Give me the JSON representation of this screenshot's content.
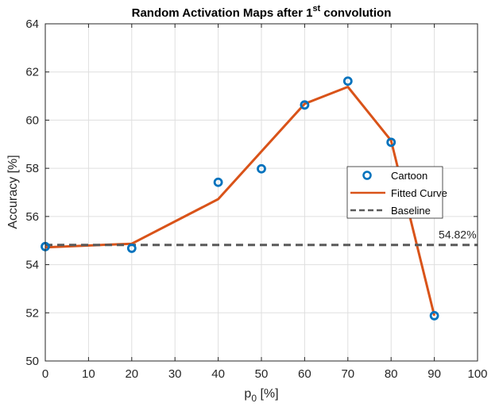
{
  "chart_data": {
    "type": "line",
    "title": "Random Activation Maps after 1",
    "title_superscript": "st",
    "title_suffix": " convolution",
    "xlabel": "p",
    "xlabel_subscript": "0",
    "xlabel_suffix": " [%]",
    "ylabel": "Accuracy [%]",
    "xlim": [
      0,
      100
    ],
    "ylim": [
      50,
      64
    ],
    "x_ticks": [
      "0",
      "10",
      "20",
      "30",
      "40",
      "50",
      "60",
      "70",
      "80",
      "90",
      "100"
    ],
    "y_ticks": [
      "50",
      "52",
      "54",
      "56",
      "58",
      "60",
      "62",
      "64"
    ],
    "grid": true,
    "legend_position": "right",
    "series": [
      {
        "name": "Cartoon",
        "kind": "scatter",
        "color": "#0072BD",
        "x": [
          0,
          20,
          40,
          50,
          60,
          70,
          80,
          90
        ],
        "y": [
          54.75,
          54.68,
          57.42,
          57.98,
          60.63,
          61.62,
          59.08,
          51.88
        ]
      },
      {
        "name": "Fitted Curve",
        "kind": "line",
        "color": "#D95319",
        "x": [
          0,
          20,
          40,
          60,
          70,
          80,
          90
        ],
        "y": [
          54.72,
          54.87,
          56.72,
          60.68,
          61.38,
          59.15,
          51.88
        ]
      },
      {
        "name": "Baseline",
        "kind": "dashed-line",
        "color": "#595959",
        "x": [
          0,
          100
        ],
        "y": [
          54.82,
          54.82
        ]
      }
    ],
    "annotation": {
      "text": "54.82%",
      "x": 91,
      "y": 54.82
    }
  }
}
